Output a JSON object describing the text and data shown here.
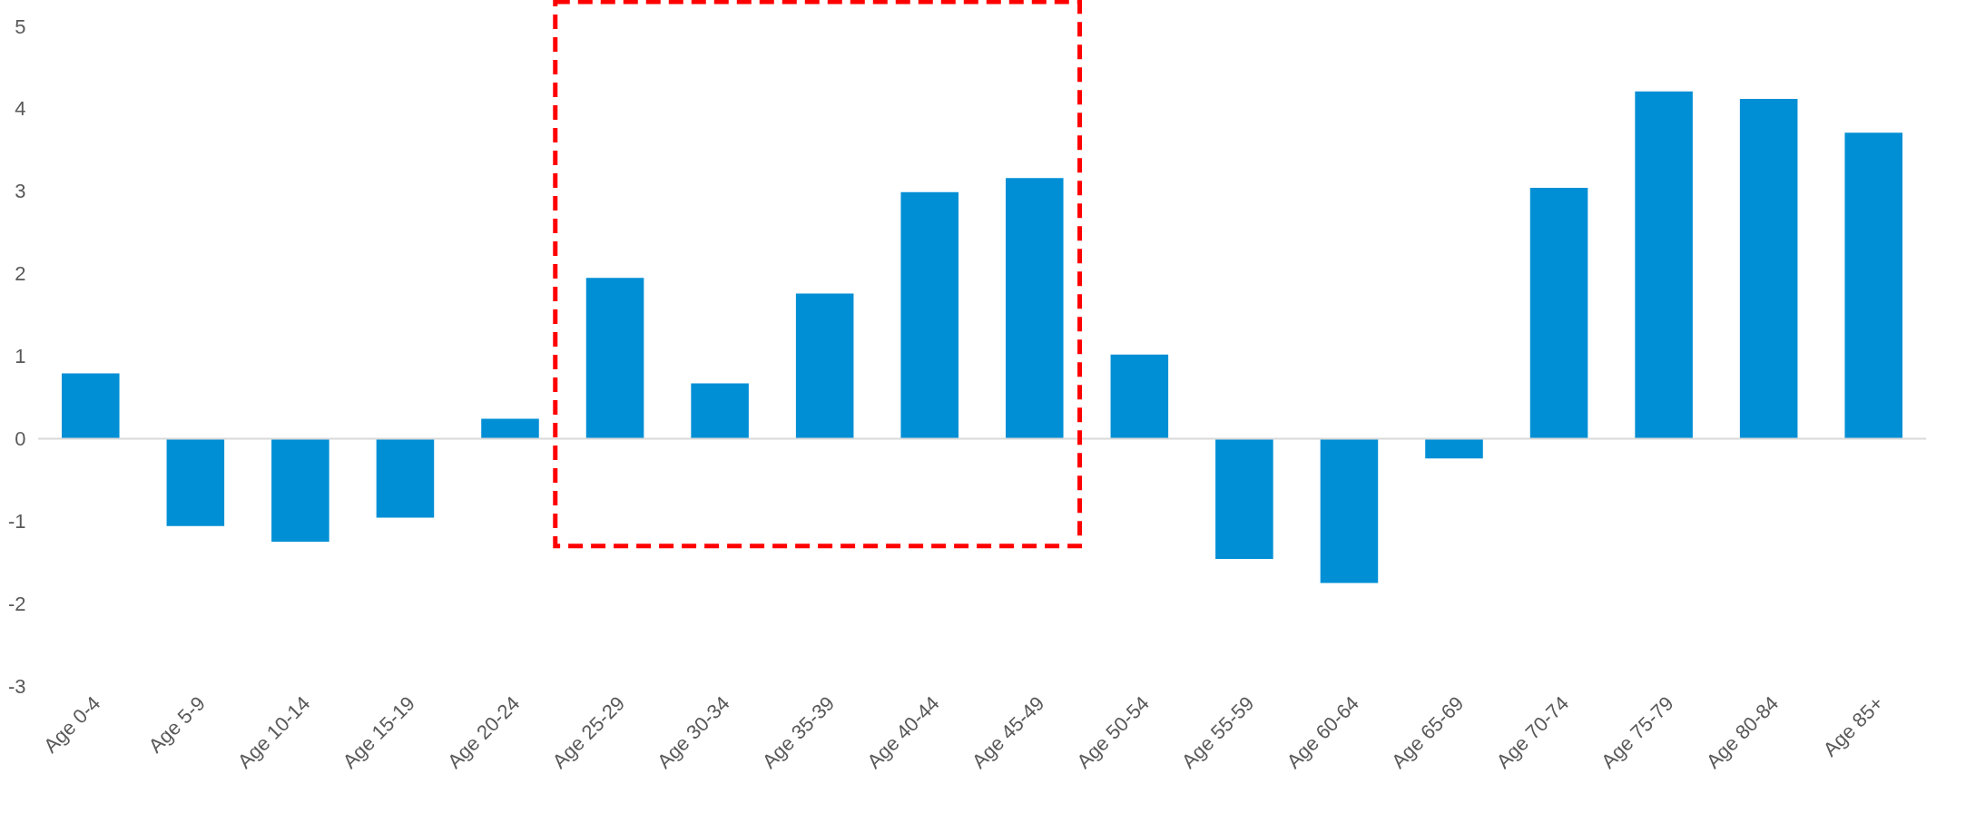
{
  "chart_data": {
    "type": "bar",
    "categories": [
      "Age 0-4",
      "Age 5-9",
      "Age 10-14",
      "Age 15-19",
      "Age 20-24",
      "Age 25-29",
      "Age 30-34",
      "Age 35-39",
      "Age 40-44",
      "Age 45-49",
      "Age 50-54",
      "Age 55-59",
      "Age 60-64",
      "Age 65-69",
      "Age 70-74",
      "Age 75-79",
      "Age 80-84",
      "Age 85+"
    ],
    "values": [
      0.79,
      -1.06,
      -1.25,
      -0.96,
      0.24,
      1.95,
      0.67,
      1.76,
      2.99,
      3.16,
      1.02,
      -1.46,
      -1.75,
      -0.24,
      3.04,
      4.21,
      4.12,
      3.71
    ],
    "color": "#008fd5",
    "ylim": [
      -3,
      5
    ],
    "yticks": [
      -3,
      -2,
      -1,
      0,
      1,
      2,
      3,
      4,
      5
    ],
    "ref_lines": [
      {
        "axis": "y",
        "value": 0,
        "color": "#d9d9d9"
      }
    ]
  }
}
